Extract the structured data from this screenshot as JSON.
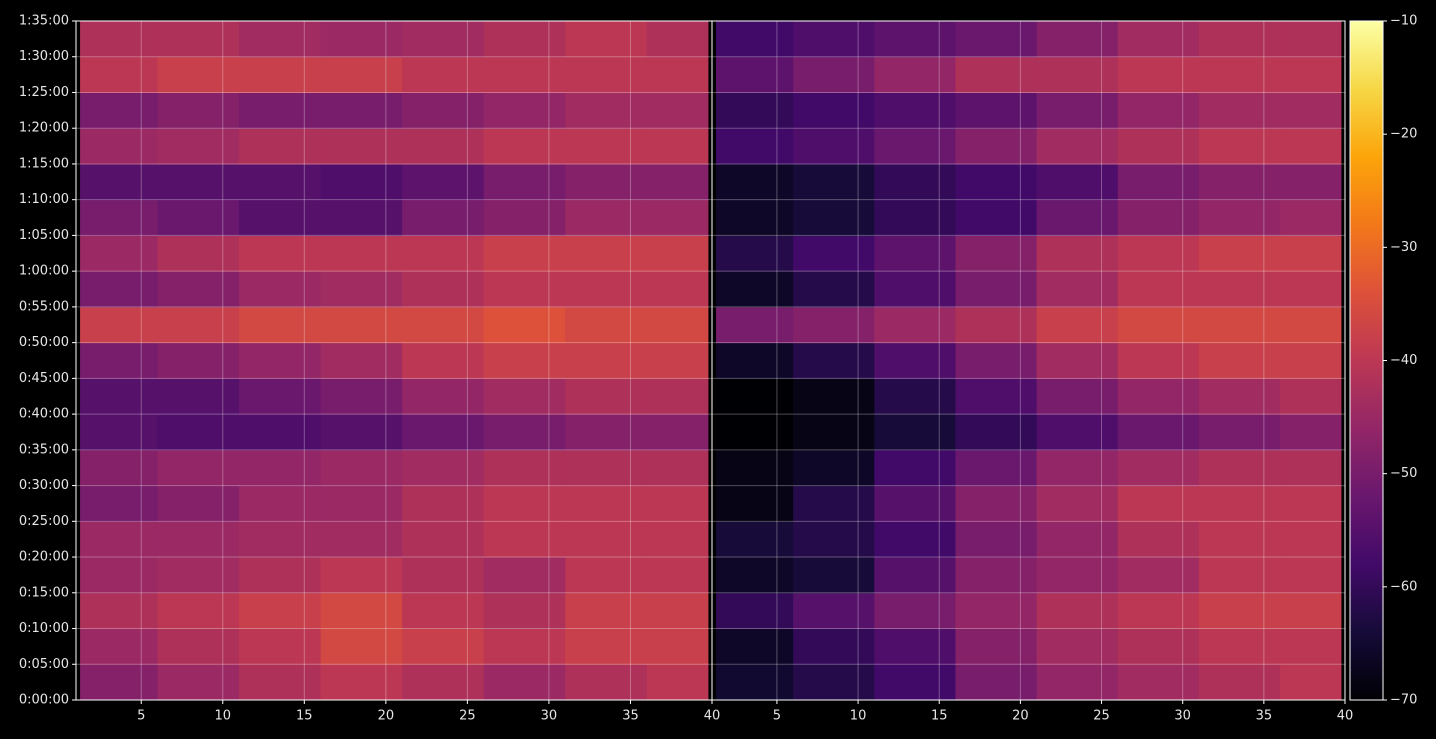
{
  "chart_data": {
    "type": "heatmap",
    "colormap": "inferno",
    "grid": true,
    "ylim": [
      0,
      95
    ],
    "yticks": [
      {
        "value": 0,
        "label": "0:00:00"
      },
      {
        "value": 5,
        "label": "0:05:00"
      },
      {
        "value": 10,
        "label": "0:10:00"
      },
      {
        "value": 15,
        "label": "0:15:00"
      },
      {
        "value": 20,
        "label": "0:20:00"
      },
      {
        "value": 25,
        "label": "0:25:00"
      },
      {
        "value": 30,
        "label": "0:30:00"
      },
      {
        "value": 35,
        "label": "0:35:00"
      },
      {
        "value": 40,
        "label": "0:40:00"
      },
      {
        "value": 45,
        "label": "0:45:00"
      },
      {
        "value": 50,
        "label": "0:50:00"
      },
      {
        "value": 55,
        "label": "0:55:00"
      },
      {
        "value": 60,
        "label": "1:00:00"
      },
      {
        "value": 65,
        "label": "1:05:00"
      },
      {
        "value": 70,
        "label": "1:10:00"
      },
      {
        "value": 75,
        "label": "1:15:00"
      },
      {
        "value": 80,
        "label": "1:20:00"
      },
      {
        "value": 85,
        "label": "1:25:00"
      },
      {
        "value": 90,
        "label": "1:30:00"
      },
      {
        "value": 95,
        "label": "1:35:00"
      }
    ],
    "ybins": [
      0,
      5,
      10,
      15,
      20,
      25,
      30,
      35,
      40,
      45,
      50,
      55,
      60,
      65,
      70,
      75,
      80,
      85,
      90,
      95
    ],
    "clim": [
      -70,
      -10
    ],
    "cticks": [
      {
        "value": -70,
        "label": "−70"
      },
      {
        "value": -60,
        "label": "−60"
      },
      {
        "value": -50,
        "label": "−50"
      },
      {
        "value": -40,
        "label": "−40"
      },
      {
        "value": -30,
        "label": "−30"
      },
      {
        "value": -20,
        "label": "−20"
      },
      {
        "value": -10,
        "label": "−10"
      }
    ],
    "panels": [
      {
        "xlim": [
          1,
          40
        ],
        "xticks": [
          5,
          10,
          15,
          20,
          25,
          30,
          35,
          40
        ],
        "xbins": [
          1.25,
          6,
          11,
          16,
          21,
          26,
          31,
          36,
          39.75
        ],
        "values": [
          [
            -48,
            -45,
            -42,
            -40,
            -42,
            -45,
            -42,
            -40
          ],
          [
            -45,
            -42,
            -40,
            -36,
            -38,
            -40,
            -38,
            -38
          ],
          [
            -42,
            -40,
            -38,
            -36,
            -40,
            -42,
            -38,
            -38
          ],
          [
            -45,
            -44,
            -42,
            -40,
            -42,
            -44,
            -40,
            -40
          ],
          [
            -45,
            -45,
            -44,
            -44,
            -42,
            -40,
            -40,
            -40
          ],
          [
            -50,
            -48,
            -45,
            -45,
            -42,
            -40,
            -40,
            -40
          ],
          [
            -48,
            -46,
            -46,
            -45,
            -44,
            -42,
            -42,
            -42
          ],
          [
            -55,
            -56,
            -56,
            -55,
            -52,
            -50,
            -48,
            -48
          ],
          [
            -55,
            -55,
            -52,
            -50,
            -46,
            -44,
            -42,
            -42
          ],
          [
            -50,
            -48,
            -46,
            -44,
            -40,
            -38,
            -38,
            -38
          ],
          [
            -38,
            -38,
            -36,
            -36,
            -36,
            -34,
            -36,
            -36
          ],
          [
            -50,
            -48,
            -45,
            -44,
            -42,
            -40,
            -40,
            -40
          ],
          [
            -45,
            -42,
            -40,
            -40,
            -40,
            -38,
            -38,
            -38
          ],
          [
            -50,
            -52,
            -55,
            -55,
            -50,
            -48,
            -45,
            -45
          ],
          [
            -55,
            -55,
            -55,
            -56,
            -54,
            -50,
            -48,
            -48
          ],
          [
            -45,
            -44,
            -42,
            -42,
            -42,
            -40,
            -40,
            -40
          ],
          [
            -50,
            -48,
            -50,
            -50,
            -48,
            -46,
            -44,
            -44
          ],
          [
            -40,
            -38,
            -38,
            -38,
            -40,
            -40,
            -40,
            -40
          ],
          [
            -42,
            -42,
            -44,
            -45,
            -44,
            -42,
            -40,
            -42
          ]
        ]
      },
      {
        "xlim": [
          1,
          40
        ],
        "xticks": [
          5,
          10,
          15,
          20,
          25,
          30,
          35,
          40
        ],
        "xbins": [
          1.25,
          6,
          11,
          16,
          21,
          26,
          31,
          36,
          39.75
        ],
        "values": [
          [
            -65,
            -62,
            -58,
            -50,
            -46,
            -44,
            -42,
            -40
          ],
          [
            -66,
            -60,
            -56,
            -48,
            -44,
            -42,
            -40,
            -40
          ],
          [
            -60,
            -55,
            -50,
            -46,
            -42,
            -40,
            -38,
            -38
          ],
          [
            -66,
            -64,
            -55,
            -48,
            -46,
            -44,
            -40,
            -40
          ],
          [
            -64,
            -62,
            -58,
            -50,
            -46,
            -42,
            -40,
            -40
          ],
          [
            -68,
            -62,
            -55,
            -48,
            -44,
            -40,
            -40,
            -40
          ],
          [
            -68,
            -66,
            -58,
            -52,
            -46,
            -44,
            -42,
            -42
          ],
          [
            -70,
            -68,
            -64,
            -60,
            -56,
            -52,
            -50,
            -48
          ],
          [
            -70,
            -68,
            -62,
            -56,
            -50,
            -46,
            -44,
            -42
          ],
          [
            -66,
            -62,
            -56,
            -50,
            -44,
            -40,
            -38,
            -38
          ],
          [
            -50,
            -48,
            -45,
            -42,
            -38,
            -36,
            -36,
            -36
          ],
          [
            -66,
            -62,
            -56,
            -50,
            -44,
            -40,
            -40,
            -40
          ],
          [
            -62,
            -58,
            -54,
            -48,
            -42,
            -40,
            -38,
            -38
          ],
          [
            -66,
            -64,
            -60,
            -58,
            -52,
            -48,
            -46,
            -45
          ],
          [
            -66,
            -64,
            -60,
            -58,
            -56,
            -50,
            -48,
            -48
          ],
          [
            -58,
            -56,
            -52,
            -48,
            -44,
            -42,
            -40,
            -40
          ],
          [
            -60,
            -58,
            -56,
            -54,
            -50,
            -46,
            -44,
            -44
          ],
          [
            -54,
            -50,
            -46,
            -42,
            -42,
            -40,
            -40,
            -40
          ],
          [
            -58,
            -56,
            -54,
            -52,
            -48,
            -44,
            -42,
            -42
          ]
        ]
      }
    ]
  }
}
